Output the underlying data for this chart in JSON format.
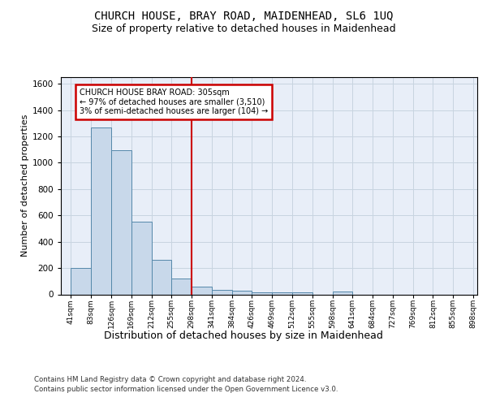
{
  "title": "CHURCH HOUSE, BRAY ROAD, MAIDENHEAD, SL6 1UQ",
  "subtitle": "Size of property relative to detached houses in Maidenhead",
  "xlabel": "Distribution of detached houses by size in Maidenhead",
  "ylabel": "Number of detached properties",
  "bar_values": [
    200,
    1270,
    1095,
    555,
    265,
    120,
    60,
    35,
    25,
    18,
    15,
    15,
    0,
    20,
    0,
    0,
    0,
    0,
    0,
    0
  ],
  "categories": [
    "41sqm",
    "83sqm",
    "126sqm",
    "169sqm",
    "212sqm",
    "255sqm",
    "298sqm",
    "341sqm",
    "384sqm",
    "426sqm",
    "469sqm",
    "512sqm",
    "555sqm",
    "598sqm",
    "641sqm",
    "684sqm",
    "727sqm",
    "769sqm",
    "812sqm",
    "855sqm",
    "898sqm"
  ],
  "bar_color": "#c8d8ea",
  "bar_edgecolor": "#5588aa",
  "bar_linewidth": 0.7,
  "vline_bin_edge": 6,
  "vline_color": "#cc0000",
  "annotation_text": "CHURCH HOUSE BRAY ROAD: 305sqm\n← 97% of detached houses are smaller (3,510)\n3% of semi-detached houses are larger (104) →",
  "annotation_box_edgecolor": "#cc0000",
  "annotation_box_facecolor": "#ffffff",
  "ylim": [
    0,
    1650
  ],
  "yticks": [
    0,
    200,
    400,
    600,
    800,
    1000,
    1200,
    1400,
    1600
  ],
  "grid_color": "#c8d4e0",
  "bg_color": "#e8eef8",
  "footer1": "Contains HM Land Registry data © Crown copyright and database right 2024.",
  "footer2": "Contains public sector information licensed under the Open Government Licence v3.0.",
  "title_fontsize": 10,
  "subtitle_fontsize": 9,
  "annotation_fontsize": 7,
  "ylabel_fontsize": 8,
  "xlabel_fontsize": 9,
  "tick_fontsize": 6.5,
  "ytick_fontsize": 7.5,
  "footer_fontsize": 6.2
}
